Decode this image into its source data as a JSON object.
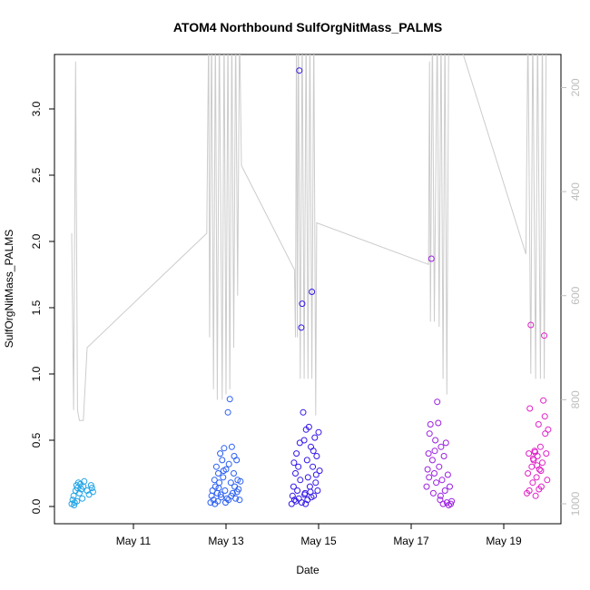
{
  "chart_data": {
    "type": "scatter",
    "title": "ATOM4 Northbound SulfOrgNitMass_PALMS",
    "xlabel": "Date",
    "ylabel": "SulfOrgNitMass_PALMS",
    "x_ticks": [
      "May 11",
      "May 13",
      "May 15",
      "May 17",
      "May 19"
    ],
    "y_ticks": [
      "0.0",
      "0.5",
      "1.0",
      "1.5",
      "2.0",
      "2.5",
      "3.0"
    ],
    "ylim": [
      0,
      3.4
    ],
    "right_axis": {
      "ticks": [
        "200",
        "400",
        "600",
        "800",
        "1000"
      ],
      "reversed": true,
      "range": [
        80,
        1030
      ],
      "color": "#bdbdbd"
    },
    "grid": false,
    "series": [
      {
        "color": "#1fa3e6",
        "points": [
          [
            "2018-05-09 16:00",
            0.02
          ],
          [
            "2018-05-09 16:30",
            0.05
          ],
          [
            "2018-05-09 17:00",
            0.08
          ],
          [
            "2018-05-09 17:30",
            0.03
          ],
          [
            "2018-05-09 18:00",
            0.12
          ],
          [
            "2018-05-09 18:30",
            0.16
          ],
          [
            "2018-05-09 19:00",
            0.14
          ],
          [
            "2018-05-09 19:30",
            0.18
          ],
          [
            "2018-05-09 20:00",
            0.1
          ],
          [
            "2018-05-09 20:30",
            0.17
          ],
          [
            "2018-05-09 21:00",
            0.13
          ],
          [
            "2018-05-09 21:30",
            0.06
          ],
          [
            "2018-05-09 22:00",
            0.15
          ],
          [
            "2018-05-09 22:30",
            0.19
          ],
          [
            "2018-05-10 00:00",
            0.12
          ],
          [
            "2018-05-10 01:00",
            0.09
          ],
          [
            "2018-05-10 02:00",
            0.16
          ],
          [
            "2018-05-10 02:30",
            0.14
          ],
          [
            "2018-05-10 03:00",
            0.11
          ],
          [
            "2018-05-09 17:15",
            0.01
          ],
          [
            "2018-05-09 18:45",
            0.04
          ]
        ]
      },
      {
        "color": "#2b5ff2",
        "points": [
          [
            "2018-05-12 16:00",
            0.03
          ],
          [
            "2018-05-12 16:30",
            0.08
          ],
          [
            "2018-05-12 17:00",
            0.12
          ],
          [
            "2018-05-12 17:30",
            0.05
          ],
          [
            "2018-05-12 18:00",
            0.2
          ],
          [
            "2018-05-12 18:30",
            0.15
          ],
          [
            "2018-05-12 19:00",
            0.3
          ],
          [
            "2018-05-12 19:30",
            0.1
          ],
          [
            "2018-05-12 20:00",
            0.25
          ],
          [
            "2018-05-12 20:30",
            0.18
          ],
          [
            "2018-05-12 21:00",
            0.4
          ],
          [
            "2018-05-12 21:30",
            0.07
          ],
          [
            "2018-05-12 22:00",
            0.35
          ],
          [
            "2018-05-12 22:30",
            0.22
          ],
          [
            "2018-05-12 23:00",
            0.44
          ],
          [
            "2018-05-12 23:30",
            0.12
          ],
          [
            "2018-05-13 00:00",
            0.28
          ],
          [
            "2018-05-13 00:30",
            0.06
          ],
          [
            "2018-05-13 01:00",
            0.71
          ],
          [
            "2018-05-13 01:30",
            0.32
          ],
          [
            "2018-05-13 02:00",
            0.81
          ],
          [
            "2018-05-13 02:30",
            0.18
          ],
          [
            "2018-05-13 03:00",
            0.45
          ],
          [
            "2018-05-13 03:30",
            0.1
          ],
          [
            "2018-05-13 04:00",
            0.25
          ],
          [
            "2018-05-13 04:30",
            0.15
          ],
          [
            "2018-05-13 05:00",
            0.06
          ],
          [
            "2018-05-13 05:30",
            0.35
          ],
          [
            "2018-05-13 06:00",
            0.2
          ],
          [
            "2018-05-13 06:30",
            0.13
          ],
          [
            "2018-05-13 07:00",
            0.05
          ],
          [
            "2018-05-13 07:30",
            0.19
          ],
          [
            "2018-05-12 18:15",
            0.02
          ],
          [
            "2018-05-12 19:45",
            0.04
          ],
          [
            "2018-05-12 21:15",
            0.09
          ],
          [
            "2018-05-12 23:45",
            0.03
          ],
          [
            "2018-05-13 01:15",
            0.05
          ],
          [
            "2018-05-13 02:45",
            0.08
          ],
          [
            "2018-05-13 04:15",
            0.38
          ],
          [
            "2018-05-13 05:45",
            0.11
          ],
          [
            "2018-05-12 20:15",
            0.14
          ],
          [
            "2018-05-12 22:45",
            0.27
          ]
        ]
      },
      {
        "color": "#3318ea",
        "points": [
          [
            "2018-05-14 10:00",
            0.02
          ],
          [
            "2018-05-14 10:30",
            0.08
          ],
          [
            "2018-05-14 11:00",
            0.15
          ],
          [
            "2018-05-14 11:30",
            0.05
          ],
          [
            "2018-05-14 12:00",
            0.25
          ],
          [
            "2018-05-14 12:30",
            0.4
          ],
          [
            "2018-05-14 13:00",
            0.12
          ],
          [
            "2018-05-14 13:30",
            0.3
          ],
          [
            "2018-05-14 14:00",
            3.29
          ],
          [
            "2018-05-14 14:30",
            0.2
          ],
          [
            "2018-05-14 15:00",
            1.35
          ],
          [
            "2018-05-14 15:30",
            1.53
          ],
          [
            "2018-05-14 16:00",
            0.71
          ],
          [
            "2018-05-14 16:30",
            0.5
          ],
          [
            "2018-05-14 17:00",
            0.1
          ],
          [
            "2018-05-14 17:30",
            0.58
          ],
          [
            "2018-05-14 18:00",
            0.35
          ],
          [
            "2018-05-14 18:30",
            0.22
          ],
          [
            "2018-05-14 19:00",
            0.6
          ],
          [
            "2018-05-14 19:30",
            0.15
          ],
          [
            "2018-05-14 20:00",
            0.45
          ],
          [
            "2018-05-14 20:30",
            1.62
          ],
          [
            "2018-05-14 21:00",
            0.3
          ],
          [
            "2018-05-14 21:30",
            0.08
          ],
          [
            "2018-05-14 22:00",
            0.52
          ],
          [
            "2018-05-14 22:30",
            0.18
          ],
          [
            "2018-05-14 23:00",
            0.38
          ],
          [
            "2018-05-14 23:30",
            0.12
          ],
          [
            "2018-05-15 00:00",
            0.56
          ],
          [
            "2018-05-15 00:30",
            0.27
          ],
          [
            "2018-05-14 12:15",
            0.04
          ],
          [
            "2018-05-14 13:45",
            0.06
          ],
          [
            "2018-05-14 15:15",
            0.03
          ],
          [
            "2018-05-14 16:45",
            0.09
          ],
          [
            "2018-05-14 18:15",
            0.05
          ],
          [
            "2018-05-14 19:45",
            0.11
          ],
          [
            "2018-05-14 21:15",
            0.42
          ],
          [
            "2018-05-14 22:45",
            0.24
          ],
          [
            "2018-05-14 11:15",
            0.33
          ],
          [
            "2018-05-14 14:15",
            0.48
          ],
          [
            "2018-05-14 17:15",
            0.02
          ],
          [
            "2018-05-14 20:15",
            0.07
          ]
        ]
      },
      {
        "color": "#9b20e0",
        "points": [
          [
            "2018-05-17 08:00",
            0.15
          ],
          [
            "2018-05-17 08:30",
            0.28
          ],
          [
            "2018-05-17 09:00",
            0.4
          ],
          [
            "2018-05-17 09:30",
            0.55
          ],
          [
            "2018-05-17 10:00",
            0.62
          ],
          [
            "2018-05-17 10:30",
            1.87
          ],
          [
            "2018-05-17 11:00",
            0.35
          ],
          [
            "2018-05-17 11:30",
            0.1
          ],
          [
            "2018-05-17 12:00",
            0.25
          ],
          [
            "2018-05-17 12:30",
            0.5
          ],
          [
            "2018-05-17 13:00",
            0.18
          ],
          [
            "2018-05-17 13:30",
            0.79
          ],
          [
            "2018-05-17 14:00",
            0.63
          ],
          [
            "2018-05-17 14:30",
            0.3
          ],
          [
            "2018-05-17 15:00",
            0.05
          ],
          [
            "2018-05-17 15:30",
            0.45
          ],
          [
            "2018-05-17 16:00",
            0.2
          ],
          [
            "2018-05-17 16:30",
            0.02
          ],
          [
            "2018-05-17 17:00",
            0.38
          ],
          [
            "2018-05-17 17:30",
            0.12
          ],
          [
            "2018-05-17 18:00",
            0.48
          ],
          [
            "2018-05-17 18:30",
            0.03
          ],
          [
            "2018-05-17 19:00",
            0.24
          ],
          [
            "2018-05-17 19:30",
            0.01
          ],
          [
            "2018-05-17 20:00",
            0.15
          ],
          [
            "2018-05-17 20:30",
            0.02
          ],
          [
            "2018-05-17 21:00",
            0.04
          ],
          [
            "2018-05-17 09:15",
            0.22
          ],
          [
            "2018-05-17 12:15",
            0.42
          ],
          [
            "2018-05-17 15:15",
            0.08
          ]
        ]
      },
      {
        "color": "#e020c8",
        "points": [
          [
            "2018-05-19 12:00",
            0.1
          ],
          [
            "2018-05-19 12:30",
            0.25
          ],
          [
            "2018-05-19 13:00",
            0.4
          ],
          [
            "2018-05-19 13:30",
            0.74
          ],
          [
            "2018-05-19 14:00",
            1.37
          ],
          [
            "2018-05-19 14:30",
            0.3
          ],
          [
            "2018-05-19 15:00",
            0.18
          ],
          [
            "2018-05-19 15:30",
            0.35
          ],
          [
            "2018-05-19 16:00",
            0.42
          ],
          [
            "2018-05-19 16:30",
            0.08
          ],
          [
            "2018-05-19 17:00",
            0.22
          ],
          [
            "2018-05-19 17:30",
            0.38
          ],
          [
            "2018-05-19 18:00",
            0.62
          ],
          [
            "2018-05-19 18:30",
            0.28
          ],
          [
            "2018-05-19 19:00",
            0.45
          ],
          [
            "2018-05-19 19:30",
            0.15
          ],
          [
            "2018-05-19 20:00",
            0.33
          ],
          [
            "2018-05-19 20:30",
            0.8
          ],
          [
            "2018-05-19 21:00",
            1.29
          ],
          [
            "2018-05-19 21:30",
            0.55
          ],
          [
            "2018-05-19 22:00",
            0.4
          ],
          [
            "2018-05-19 22:30",
            0.2
          ],
          [
            "2018-05-19 23:00",
            0.58
          ],
          [
            "2018-05-19 13:15",
            0.12
          ],
          [
            "2018-05-19 15:15",
            0.36
          ],
          [
            "2018-05-19 17:15",
            0.31
          ],
          [
            "2018-05-19 19:15",
            0.27
          ],
          [
            "2018-05-19 21:15",
            0.68
          ],
          [
            "2018-05-19 16:15",
            0.41
          ],
          [
            "2018-05-19 18:15",
            0.13
          ]
        ]
      }
    ],
    "pressure_trace": {
      "color": "#cccccc",
      "points": [
        [
          "2018-05-09 16:00",
          480
        ],
        [
          "2018-05-09 17:00",
          820
        ],
        [
          "2018-05-09 18:00",
          150
        ],
        [
          "2018-05-09 19:00",
          820
        ],
        [
          "2018-05-09 20:00",
          840
        ],
        [
          "2018-05-09 22:00",
          840
        ],
        [
          "2018-05-10 00:00",
          700
        ],
        [
          "2018-05-12 14:00",
          480
        ],
        [
          "2018-05-12 15:00",
          80
        ],
        [
          "2018-05-12 15:30",
          680
        ],
        [
          "2018-05-12 16:30",
          80
        ],
        [
          "2018-05-12 17:30",
          780
        ],
        [
          "2018-05-12 18:30",
          80
        ],
        [
          "2018-05-12 19:30",
          800
        ],
        [
          "2018-05-12 20:30",
          80
        ],
        [
          "2018-05-12 22:00",
          800
        ],
        [
          "2018-05-12 23:00",
          80
        ],
        [
          "2018-05-13 00:00",
          790
        ],
        [
          "2018-05-13 01:00",
          80
        ],
        [
          "2018-05-13 02:00",
          780
        ],
        [
          "2018-05-13 03:00",
          80
        ],
        [
          "2018-05-13 04:00",
          700
        ],
        [
          "2018-05-13 05:00",
          80
        ],
        [
          "2018-05-13 06:00",
          600
        ],
        [
          "2018-05-13 07:00",
          80
        ],
        [
          "2018-05-13 08:00",
          350
        ],
        [
          "2018-05-14 11:30",
          550
        ],
        [
          "2018-05-14 12:00",
          680
        ],
        [
          "2018-05-14 12:30",
          80
        ],
        [
          "2018-05-14 13:00",
          680
        ],
        [
          "2018-05-14 13:30",
          80
        ],
        [
          "2018-05-14 14:30",
          760
        ],
        [
          "2018-05-14 15:30",
          80
        ],
        [
          "2018-05-14 16:30",
          760
        ],
        [
          "2018-05-14 17:30",
          80
        ],
        [
          "2018-05-14 18:30",
          760
        ],
        [
          "2018-05-14 19:30",
          80
        ],
        [
          "2018-05-14 20:30",
          760
        ],
        [
          "2018-05-14 21:30",
          80
        ],
        [
          "2018-05-14 22:30",
          830
        ],
        [
          "2018-05-14 23:00",
          460
        ],
        [
          "2018-05-17 09:00",
          540
        ],
        [
          "2018-05-17 09:30",
          150
        ],
        [
          "2018-05-17 10:00",
          650
        ],
        [
          "2018-05-17 11:00",
          80
        ],
        [
          "2018-05-17 12:00",
          650
        ],
        [
          "2018-05-17 13:30",
          80
        ],
        [
          "2018-05-17 14:30",
          660
        ],
        [
          "2018-05-17 15:30",
          80
        ],
        [
          "2018-05-17 16:30",
          760
        ],
        [
          "2018-05-17 17:30",
          80
        ],
        [
          "2018-05-17 18:30",
          790
        ],
        [
          "2018-05-17 19:30",
          80
        ],
        [
          "2018-05-17 20:30",
          60
        ],
        [
          "2018-05-19 11:30",
          520
        ],
        [
          "2018-05-19 12:30",
          80
        ],
        [
          "2018-05-19 14:00",
          750
        ],
        [
          "2018-05-19 15:00",
          80
        ],
        [
          "2018-05-19 16:30",
          760
        ],
        [
          "2018-05-19 17:30",
          80
        ],
        [
          "2018-05-19 19:00",
          760
        ],
        [
          "2018-05-19 20:00",
          80
        ],
        [
          "2018-05-19 21:00",
          760
        ],
        [
          "2018-05-19 22:00",
          80
        ]
      ]
    }
  }
}
